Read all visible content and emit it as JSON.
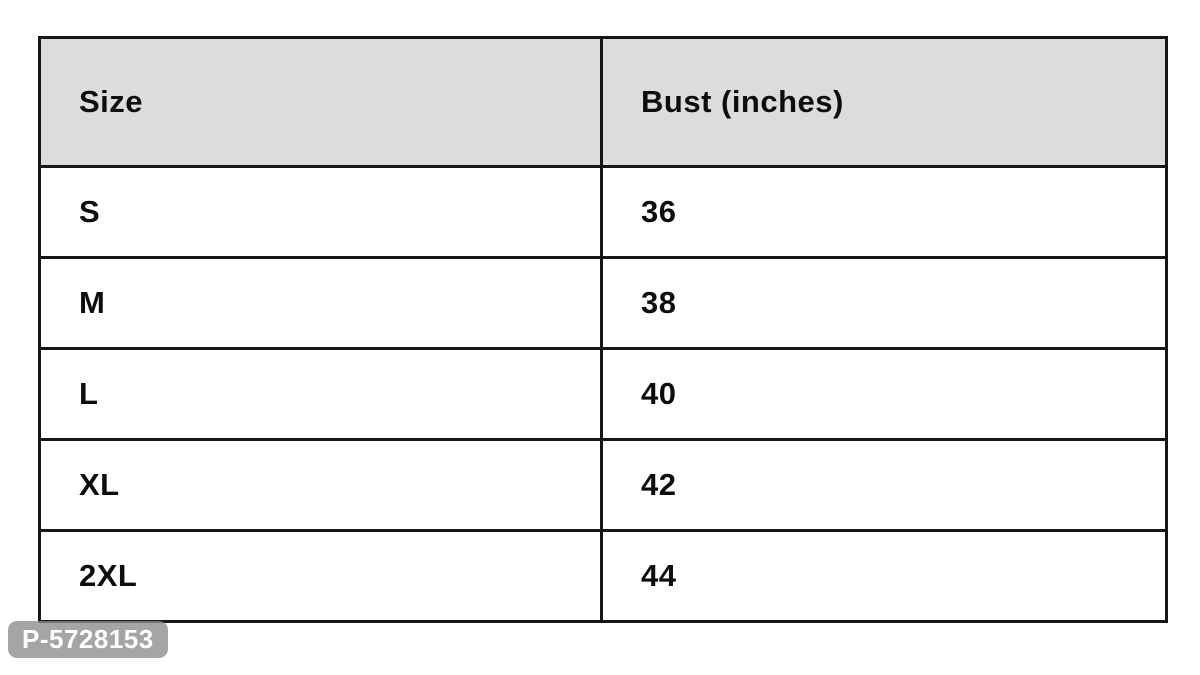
{
  "table": {
    "header_bg": "#dcdcdc",
    "border_color": "#161616",
    "columns": [
      {
        "label": "Size"
      },
      {
        "label": "Bust (inches)"
      }
    ],
    "rows": [
      {
        "size": "S",
        "bust": "36"
      },
      {
        "size": "M",
        "bust": "38"
      },
      {
        "size": "L",
        "bust": "40"
      },
      {
        "size": "XL",
        "bust": "42"
      },
      {
        "size": "2XL",
        "bust": "44"
      }
    ]
  },
  "watermark": {
    "label": "P-5728153",
    "bg": "#8c8c8c",
    "text_color": "#ffffff"
  }
}
